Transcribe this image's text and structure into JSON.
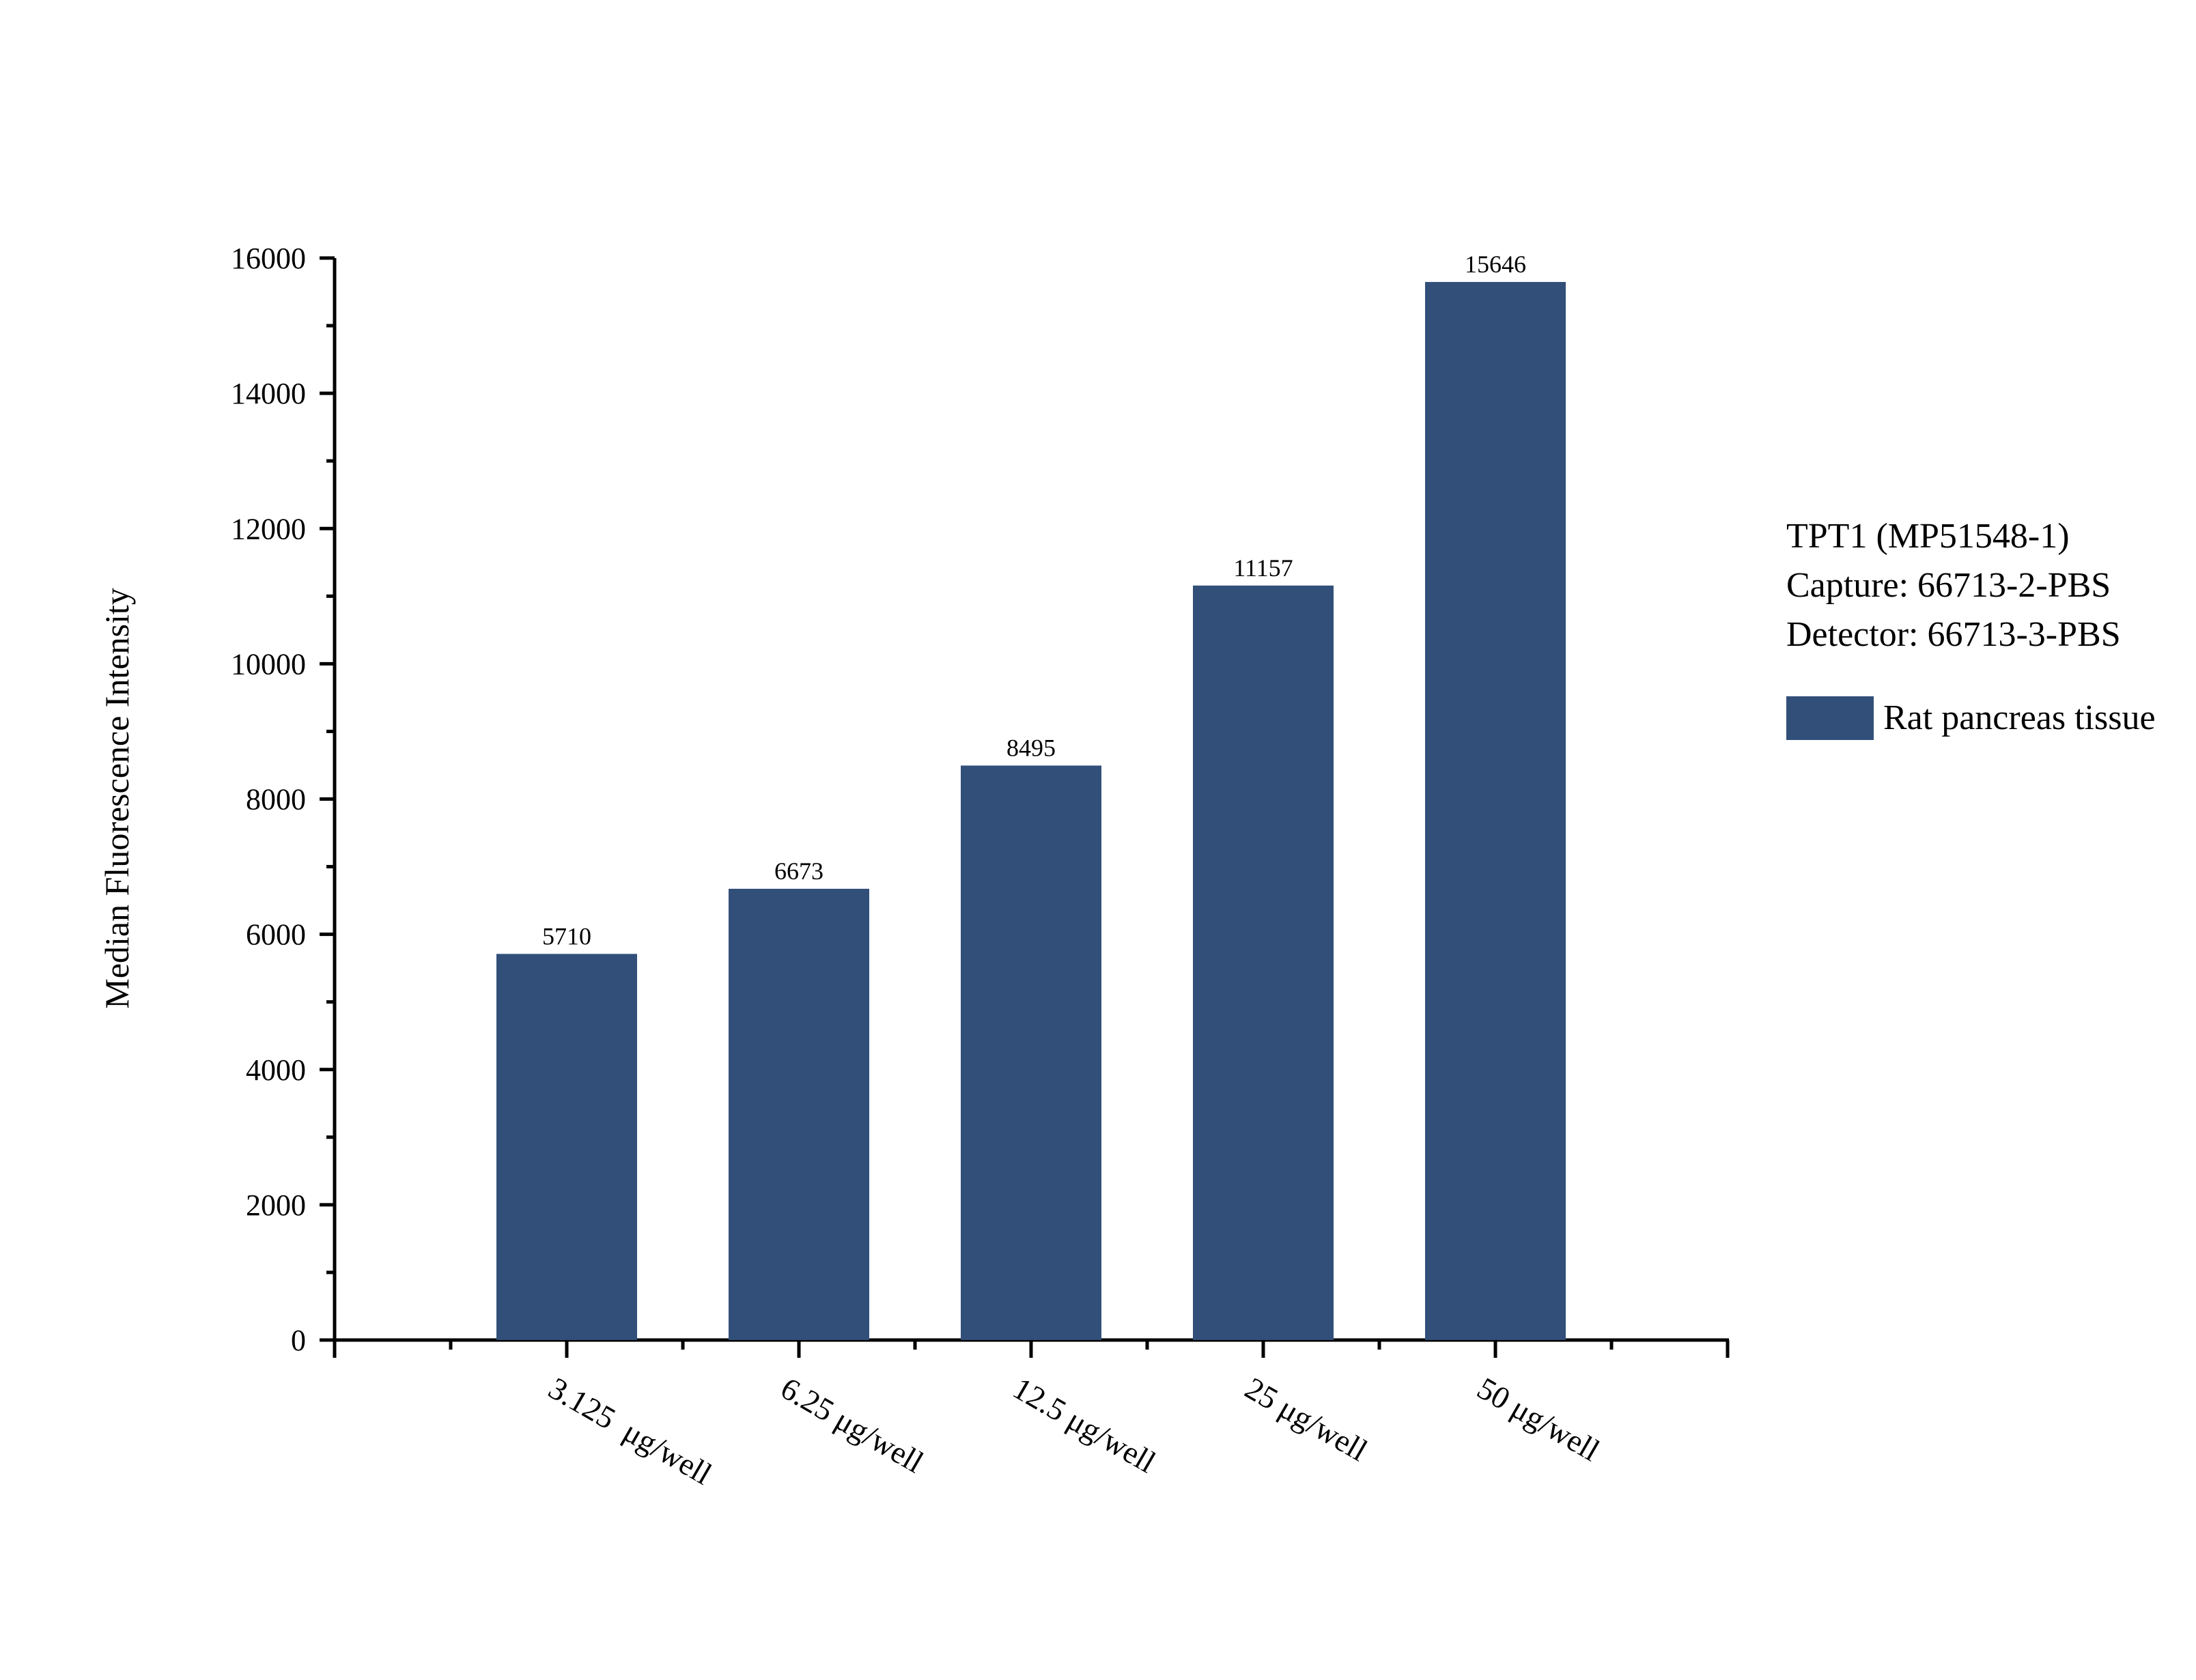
{
  "chart_data": {
    "type": "bar",
    "categories": [
      "3.125  μg/well",
      "6.25 μg/well",
      "12.5 μg/well",
      "25 μg/well",
      "50 μg/well"
    ],
    "series": [
      {
        "name": "Rat pancreas tissue",
        "values": [
          5710,
          6673,
          8495,
          11157,
          15646
        ],
        "color": "#314f79"
      }
    ],
    "data_labels": [
      "5710",
      "6673",
      "8495",
      "11157",
      "15646"
    ],
    "ylabel": "Median Fluorescence Intensity",
    "xlabel": "",
    "ylim": [
      0,
      16000
    ],
    "yticks": [
      0,
      2000,
      4000,
      6000,
      8000,
      10000,
      12000,
      14000,
      16000
    ],
    "ytick_labels": [
      "0",
      "2000",
      "4000",
      "6000",
      "8000",
      "10000",
      "12000",
      "14000",
      "16000"
    ],
    "grid": false,
    "legend_position": "right"
  },
  "legend": {
    "heading_lines": [
      "TPT1 (MP51548-1)",
      "Capture: 66713-2-PBS",
      "Detector: 66713-3-PBS"
    ],
    "entry_label": "Rat pancreas tissue",
    "swatch_color": "#314f79"
  }
}
